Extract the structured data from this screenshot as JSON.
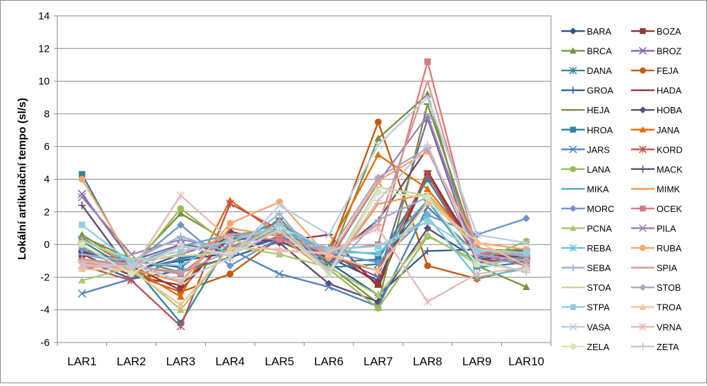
{
  "chart_data": {
    "type": "line",
    "title": "",
    "xlabel": "",
    "ylabel": "Lokální artikulační tempo (sl/s)",
    "ylim": [
      -6,
      14
    ],
    "yticks": [
      -6,
      -4,
      -2,
      0,
      2,
      4,
      6,
      8,
      10,
      12,
      14
    ],
    "grid": true,
    "legend": "right",
    "categories": [
      "LAR1",
      "LAR2",
      "LAR3",
      "LAR4",
      "LAR5",
      "LAR6",
      "LAR7",
      "LAR8",
      "LAR9",
      "LAR10"
    ],
    "series": [
      {
        "name": "BARA",
        "color": "#2f5487",
        "marker": "diamond",
        "values": [
          -0.3,
          -1.5,
          -1.0,
          -0.5,
          0.4,
          -0.8,
          -2.2,
          4.3,
          -0.7,
          -0.5
        ]
      },
      {
        "name": "BOZA",
        "color": "#943634",
        "marker": "square",
        "values": [
          -0.6,
          -1.9,
          -2.5,
          0.4,
          0.3,
          -0.4,
          -2.4,
          4.2,
          -0.3,
          -1.1
        ]
      },
      {
        "name": "BRCA",
        "color": "#76923c",
        "marker": "triangle",
        "values": [
          0.6,
          -1.3,
          1.9,
          0.1,
          1.0,
          -1.1,
          6.5,
          9.2,
          -1.3,
          -2.6
        ]
      },
      {
        "name": "BROZ",
        "color": "#8064a2",
        "marker": "x",
        "values": [
          3.1,
          -1.0,
          0.0,
          -0.4,
          0.5,
          -0.6,
          -2.0,
          7.7,
          -1.1,
          -0.8
        ]
      },
      {
        "name": "DANA",
        "color": "#31859c",
        "marker": "star",
        "values": [
          0.2,
          -1.6,
          -0.9,
          -0.2,
          0.8,
          -1.4,
          -1.2,
          2.7,
          -1.4,
          -1.1
        ]
      },
      {
        "name": "FEJA",
        "color": "#c55a11",
        "marker": "circle",
        "values": [
          -0.1,
          -1.8,
          -2.9,
          -1.8,
          0.4,
          -0.6,
          7.5,
          -1.3,
          -2.1,
          -1.4
        ]
      },
      {
        "name": "GROA",
        "color": "#2f5f95",
        "marker": "plus",
        "values": [
          -0.9,
          -2.1,
          -1.6,
          -0.8,
          0.2,
          -1.1,
          -3.1,
          -0.4,
          -0.3,
          -0.4
        ]
      },
      {
        "name": "HADA",
        "color": "#953735",
        "marker": "dash",
        "values": [
          -0.4,
          -1.3,
          -2.8,
          0.6,
          0.2,
          0.6,
          -2.6,
          4.5,
          -0.6,
          -0.8
        ]
      },
      {
        "name": "HEJA",
        "color": "#77933c",
        "marker": "dash",
        "values": [
          0.5,
          -0.9,
          -1.7,
          -0.8,
          1.6,
          -1.3,
          -3.6,
          8.6,
          -0.4,
          -0.3
        ]
      },
      {
        "name": "HOBA",
        "color": "#5f497a",
        "marker": "diamond",
        "values": [
          -0.5,
          -1.0,
          -1.4,
          0.8,
          0.1,
          -2.4,
          -3.5,
          1.0,
          -0.9,
          -0.6
        ]
      },
      {
        "name": "HROA",
        "color": "#31849b",
        "marker": "square",
        "values": [
          4.3,
          -1.2,
          -4.8,
          0.2,
          1.4,
          -1.1,
          -0.9,
          4.0,
          -0.8,
          -0.4
        ]
      },
      {
        "name": "JANA",
        "color": "#e46c0a",
        "marker": "triangle",
        "values": [
          0.4,
          -1.4,
          -3.2,
          2.7,
          0.6,
          -0.2,
          5.5,
          3.4,
          -0.3,
          -0.7
        ]
      },
      {
        "name": "JARS",
        "color": "#4f81bd",
        "marker": "x",
        "values": [
          -3.0,
          -2.1,
          -0.8,
          -0.3,
          -1.8,
          -2.6,
          -3.8,
          2.3,
          -0.6,
          -0.5
        ]
      },
      {
        "name": "KORD",
        "color": "#c0504d",
        "marker": "star",
        "values": [
          -1.3,
          -2.2,
          -5.0,
          2.5,
          0.9,
          -0.8,
          -1.6,
          4.3,
          -0.9,
          -1.1
        ]
      },
      {
        "name": "LANA",
        "color": "#9bbb59",
        "marker": "circle",
        "values": [
          -0.1,
          -1.5,
          2.2,
          -0.1,
          0.9,
          -1.5,
          -3.9,
          0.5,
          -1.0,
          0.2
        ]
      },
      {
        "name": "MACK",
        "color": "#604a7b",
        "marker": "plus",
        "values": [
          2.4,
          -1.7,
          -0.6,
          0.4,
          0.2,
          -0.9,
          1.5,
          5.9,
          -0.9,
          -0.7
        ]
      },
      {
        "name": "MIKA",
        "color": "#4bacc6",
        "marker": "dash",
        "values": [
          -0.6,
          -1.2,
          -0.1,
          0.6,
          0.9,
          -0.3,
          -0.6,
          2.7,
          -1.4,
          -0.7
        ]
      },
      {
        "name": "MIMK",
        "color": "#f79646",
        "marker": "dash",
        "values": [
          -1.1,
          -1.5,
          -2.3,
          1.0,
          0.5,
          -1.7,
          2.5,
          3.1,
          -0.2,
          -0.6
        ]
      },
      {
        "name": "MORC",
        "color": "#6f93c9",
        "marker": "diamond",
        "values": [
          -0.3,
          -1.3,
          1.2,
          -1.3,
          0.4,
          -0.5,
          -1.1,
          1.8,
          0.6,
          1.6
        ]
      },
      {
        "name": "OCEK",
        "color": "#d97b79",
        "marker": "square",
        "values": [
          -1.0,
          -1.3,
          -1.8,
          0.5,
          0.3,
          -0.4,
          0.0,
          11.2,
          -0.5,
          -0.7
        ]
      },
      {
        "name": "PCNA",
        "color": "#a9c96f",
        "marker": "triangle",
        "values": [
          -2.2,
          -1.4,
          -4.0,
          -0.1,
          -0.6,
          -1.4,
          -3.1,
          0.6,
          -1.2,
          -0.9
        ]
      },
      {
        "name": "PILA",
        "color": "#9982b5",
        "marker": "x",
        "values": [
          2.9,
          -0.6,
          0.3,
          -0.2,
          0.8,
          -1.0,
          3.8,
          7.9,
          -0.6,
          -1.3
        ]
      },
      {
        "name": "REBA",
        "color": "#6cc4d9",
        "marker": "star",
        "values": [
          0.3,
          -1.1,
          -1.3,
          0.4,
          0.9,
          -0.5,
          -0.5,
          1.7,
          -2.0,
          -1.5
        ]
      },
      {
        "name": "RUBA",
        "color": "#f9a46a",
        "marker": "circle",
        "values": [
          4.0,
          -1.0,
          -2.3,
          1.3,
          2.6,
          -0.8,
          3.9,
          5.7,
          0.1,
          -0.3
        ]
      },
      {
        "name": "SEBA",
        "color": "#95b3d7",
        "marker": "plus",
        "values": [
          -0.6,
          -1.0,
          0.5,
          -0.5,
          1.9,
          -1.7,
          1.5,
          2.9,
          -0.3,
          -0.7
        ]
      },
      {
        "name": "SPIA",
        "color": "#d99594",
        "marker": "dash",
        "values": [
          -0.9,
          -1.2,
          -0.6,
          0.6,
          0.7,
          -0.6,
          1.2,
          10.0,
          -0.2,
          -0.6
        ]
      },
      {
        "name": "STOA",
        "color": "#c3d69b",
        "marker": "dash",
        "values": [
          0.2,
          -0.9,
          -0.7,
          -0.5,
          1.2,
          -1.7,
          3.5,
          3.0,
          -0.3,
          -0.5
        ]
      },
      {
        "name": "STOB",
        "color": "#b2a2c7",
        "marker": "diamond",
        "values": [
          -1.4,
          -1.3,
          -1.7,
          -0.4,
          1.4,
          -0.5,
          4.1,
          5.9,
          -0.6,
          -1.0
        ]
      },
      {
        "name": "STPA",
        "color": "#93cddd",
        "marker": "square",
        "values": [
          1.2,
          -1.1,
          -0.4,
          0.2,
          1.1,
          -0.3,
          -0.1,
          1.4,
          -0.4,
          -0.5
        ]
      },
      {
        "name": "TROA",
        "color": "#fac08f",
        "marker": "triangle",
        "values": [
          -1.5,
          -1.6,
          -3.7,
          -0.2,
          -0.3,
          -0.6,
          -1.6,
          2.6,
          0.2,
          -1.3
        ]
      },
      {
        "name": "VASA",
        "color": "#b9cde5",
        "marker": "x",
        "values": [
          -1.3,
          -1.3,
          -2.2,
          -0.8,
          2.4,
          0.6,
          6.1,
          9.0,
          0.6,
          0.1
        ]
      },
      {
        "name": "VRNA",
        "color": "#e6b9b8",
        "marker": "star",
        "values": [
          -1.2,
          -1.6,
          3.0,
          0.3,
          -0.4,
          -0.5,
          1.0,
          -3.5,
          -1.8,
          -1.4
        ]
      },
      {
        "name": "ZELA",
        "color": "#d7e4bd",
        "marker": "circle",
        "values": [
          0.0,
          -1.8,
          -0.1,
          -0.6,
          0.9,
          -1.8,
          3.2,
          2.9,
          -1.2,
          -1.6
        ]
      },
      {
        "name": "ZETA",
        "color": "#ccc1da",
        "marker": "plus",
        "values": [
          -1.0,
          -1.4,
          -0.1,
          -0.7,
          0.9,
          -1.6,
          2.7,
          6.1,
          -0.9,
          -1.7
        ]
      }
    ]
  }
}
